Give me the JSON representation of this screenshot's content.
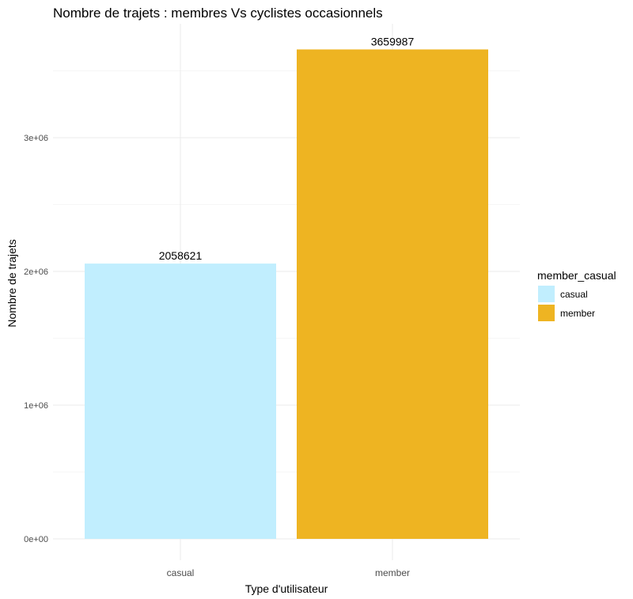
{
  "chart_data": {
    "type": "bar",
    "title": "Nombre de trajets : membres Vs cyclistes occasionnels",
    "xlabel": "Type d'utilisateur",
    "ylabel": "Nombre de trajets",
    "categories": [
      "casual",
      "member"
    ],
    "values": [
      2058621,
      3659987
    ],
    "data_labels": [
      "2058621",
      "3659987"
    ],
    "colors": [
      "#c1eefe",
      "#eeb422"
    ],
    "ylim": [
      0,
      3850000
    ],
    "yticks": [
      0,
      1000000,
      2000000,
      3000000
    ],
    "ytick_labels": [
      "0e+00",
      "1e+06",
      "2e+06",
      "3e+06"
    ],
    "grid": true,
    "legend": {
      "title": "member_casual",
      "position": "right",
      "entries": [
        "casual",
        "member"
      ]
    }
  }
}
